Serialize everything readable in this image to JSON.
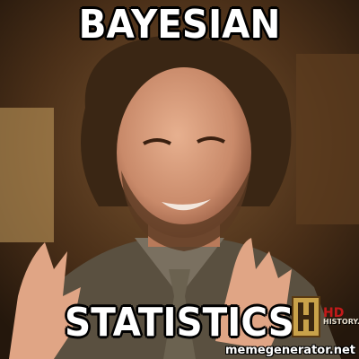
{
  "meme": {
    "top_text": "BAYESIAN",
    "bottom_text": "STATISTICS",
    "channel_logo_text": "HISTORY.COM",
    "channel_logo_hd": "HD",
    "watermark": "memegenerator.net"
  },
  "icons": {
    "channel_logo": "history-channel-logo"
  },
  "colors": {
    "caption_text": "#ffffff",
    "caption_outline": "#000000",
    "background_warm": "#5a3a1e"
  }
}
